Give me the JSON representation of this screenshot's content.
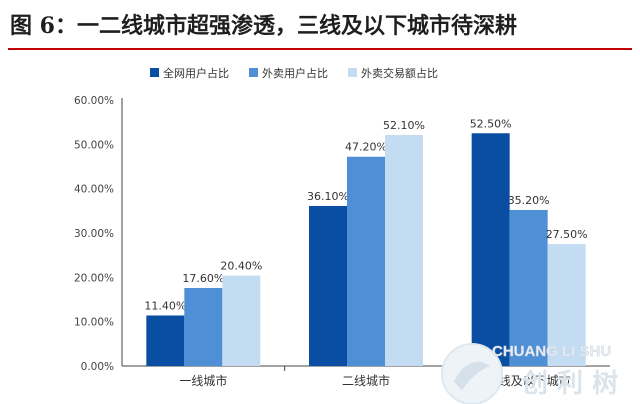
{
  "title": "图 6：一二线城市超强渗透，三线及以下城市待深耕",
  "chart_data": {
    "type": "bar",
    "title": "",
    "xlabel": "",
    "ylabel": "",
    "categories": [
      "一线城市",
      "二线城市",
      "三线及以下城市"
    ],
    "series": [
      {
        "name": "全网用户占比",
        "values": [
          11.4,
          36.1,
          52.5
        ],
        "color": "#0a4ea3"
      },
      {
        "name": "外卖用户占比",
        "values": [
          17.6,
          47.2,
          35.2
        ],
        "color": "#4f8fd6"
      },
      {
        "name": "外卖交易额占比",
        "values": [
          20.4,
          52.1,
          27.5
        ],
        "color": "#c4dcf2"
      }
    ],
    "value_labels": [
      [
        "11.40%",
        "36.10%",
        "52.50%"
      ],
      [
        "17.60%",
        "47.20%",
        "35.20%"
      ],
      [
        "20.40%",
        "52.10%",
        "27.50%"
      ]
    ],
    "ylim": [
      0,
      60
    ],
    "yticks": [
      "0.00%",
      "10.00%",
      "20.00%",
      "30.00%",
      "40.00%",
      "50.00%",
      "60.00%"
    ],
    "legend_position": "top",
    "grid": false
  },
  "watermark": {
    "text": "CHUANG LI SHU",
    "chinese": "创 利 树",
    "icon": "tree-logo-icon"
  }
}
